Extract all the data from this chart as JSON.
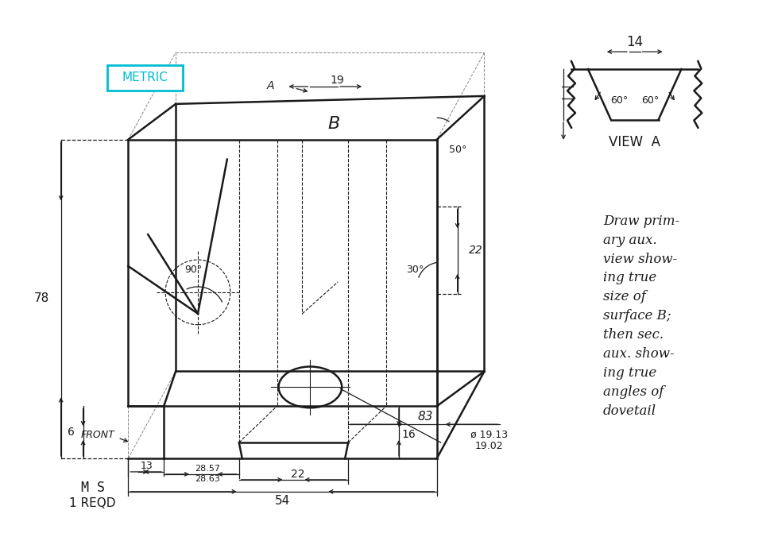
{
  "bg_color": "#ffffff",
  "line_color": "#1a1a1a",
  "metric_box_color": "#00bcd4",
  "text_instructions": [
    "Draw prim-",
    "ary aux.",
    "view show-",
    "ing true",
    "size of",
    "surface B;",
    "then sec.",
    "aux. show-",
    "ing true",
    "angles of",
    "dovetail"
  ],
  "figsize": [
    9.69,
    6.76
  ],
  "dpi": 100,
  "lw_main": 1.8,
  "lw_thin": 0.8,
  "lw_dim": 0.9
}
